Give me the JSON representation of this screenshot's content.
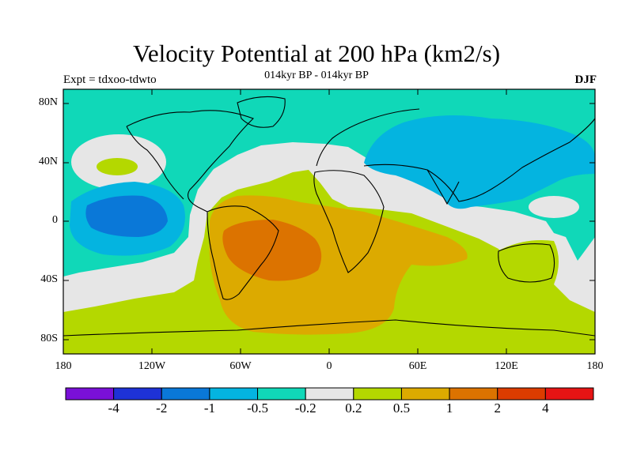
{
  "title": "Velocity Potential at 200 hPa (km2/s)",
  "subtitle": "014kyr BP - 014kyr BP",
  "left_label": "Expt = tdxoo-tdwto",
  "right_label": "DJF",
  "lat_ticks": [
    "80N",
    "40N",
    "0",
    "40S",
    "80S"
  ],
  "lon_ticks": [
    "180",
    "120W",
    "60W",
    "0",
    "60E",
    "120E",
    "180"
  ],
  "colorbar": {
    "colors": [
      "#7a10d8",
      "#1e32d6",
      "#0a78d8",
      "#04b4e0",
      "#10d8b8",
      "#e6e6e6",
      "#b4d800",
      "#dcaa00",
      "#dc7300",
      "#dc3c00",
      "#e61414"
    ],
    "labels": [
      "-4",
      "-2",
      "-1",
      "-0.5",
      "-0.2",
      "0.2",
      "0.5",
      "1",
      "2",
      "4"
    ]
  },
  "colors": {
    "cyan": "#10d8b8",
    "blue": "#04b4e0",
    "dark_blue": "#0a78d8",
    "grey": "#e6e6e6",
    "green": "#b4d800",
    "yellow_orange": "#dcaa00",
    "orange": "#dc7300"
  }
}
